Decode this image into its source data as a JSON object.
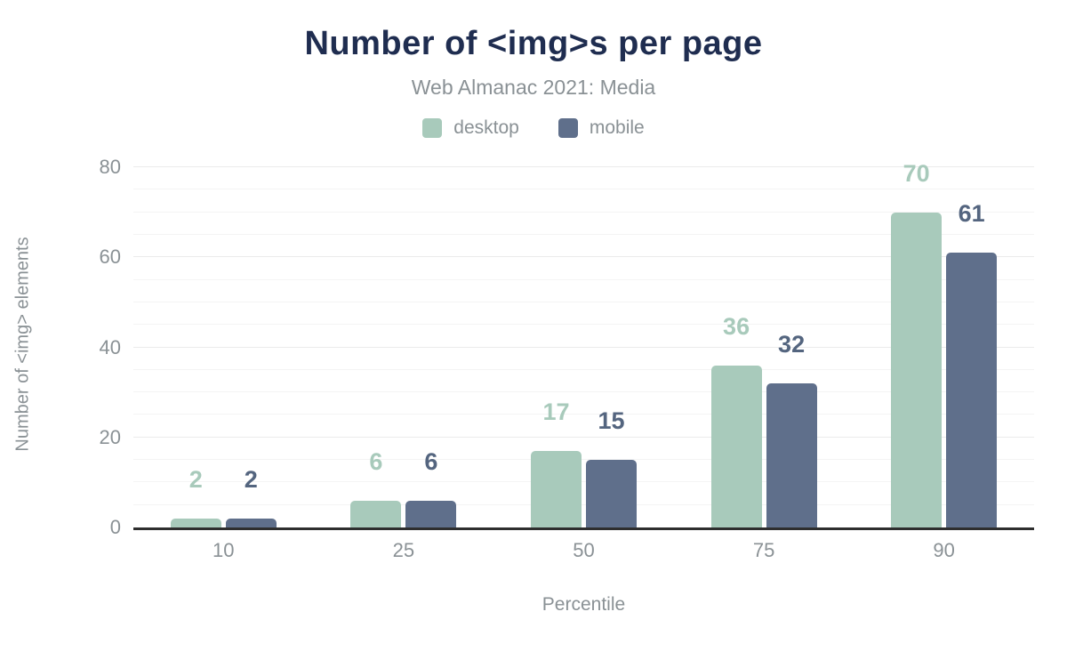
{
  "header": {
    "title": "Number of <img>s per page",
    "subtitle": "Web Almanac 2021: Media"
  },
  "legend": {
    "items": [
      {
        "label": "desktop",
        "color": "#a8cabb"
      },
      {
        "label": "mobile",
        "color": "#5f6f8b"
      }
    ]
  },
  "chart_data": {
    "type": "bar",
    "title": "Number of <img>s per page",
    "subtitle": "Web Almanac 2021: Media",
    "categories": [
      "10",
      "25",
      "50",
      "75",
      "90"
    ],
    "series": [
      {
        "name": "desktop",
        "color": "#a8cabb",
        "label_color": "#a8cabb",
        "values": [
          2,
          6,
          17,
          36,
          70
        ]
      },
      {
        "name": "mobile",
        "color": "#5f6f8b",
        "label_color": "#54657f",
        "values": [
          2,
          6,
          15,
          32,
          61
        ]
      }
    ],
    "xlabel": "Percentile",
    "ylabel": "Number of <img> elements",
    "ylim": [
      0,
      80
    ],
    "yticks": [
      0,
      20,
      40,
      60,
      80
    ],
    "minor_grid_step": 5,
    "major_grid_step": 20,
    "grid": "horizontal",
    "legend_position": "top",
    "bar_value_labels": true
  }
}
